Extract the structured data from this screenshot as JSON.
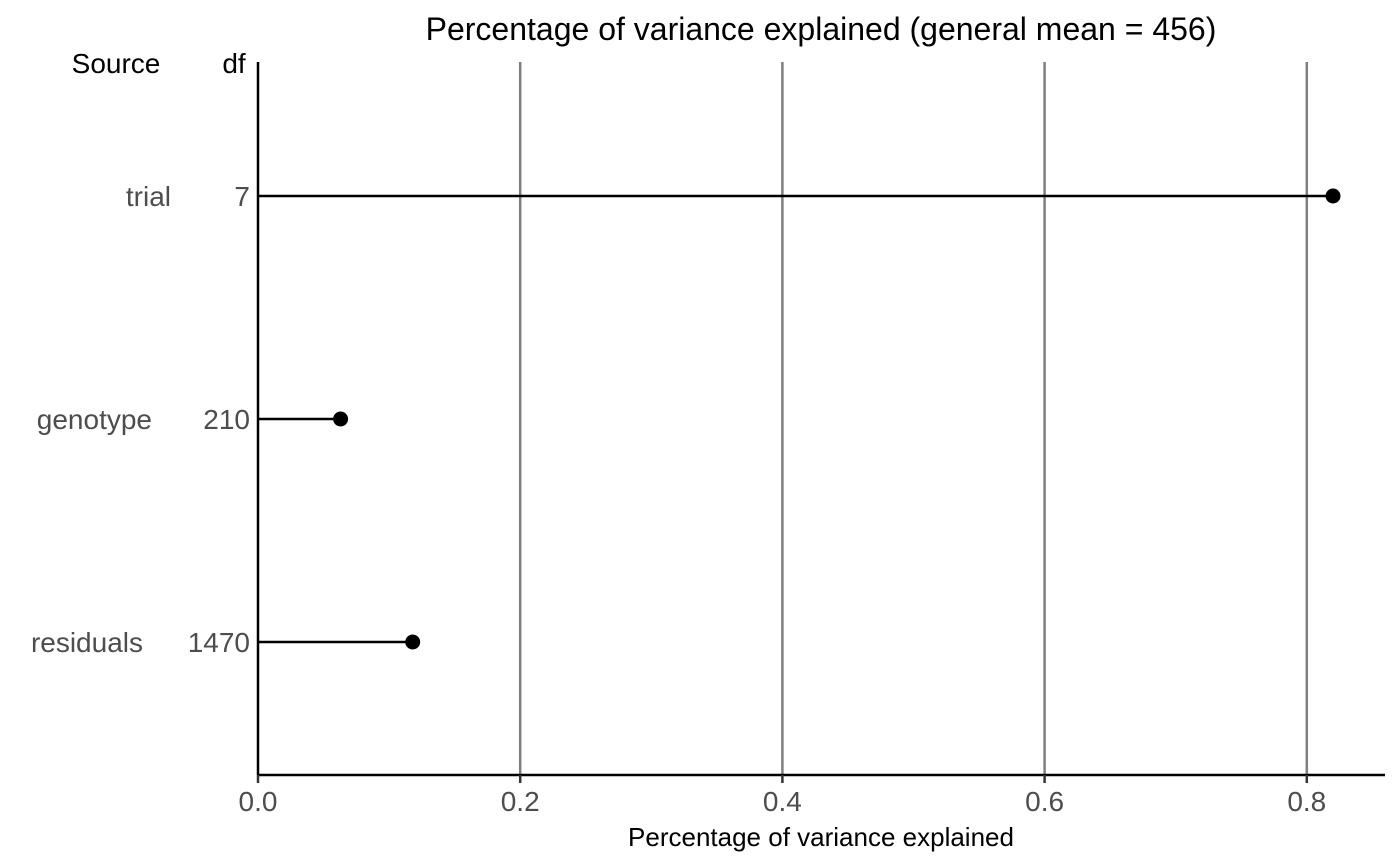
{
  "chart_data": {
    "type": "lollipop",
    "title": "Percentage of variance explained (general mean = 456)",
    "xlabel": "Percentage of variance explained",
    "xlim": [
      0,
      0.86
    ],
    "x_ticks": [
      0.0,
      0.2,
      0.4,
      0.6,
      0.8
    ],
    "x_tick_labels": [
      "0.0",
      "0.2",
      "0.4",
      "0.6",
      "0.8"
    ],
    "vertical_grid": true,
    "column_headers": {
      "source": "Source",
      "df": "df"
    },
    "categories": [
      {
        "source": "trial",
        "df": "7",
        "value": 0.82
      },
      {
        "source": "genotype",
        "df": "210",
        "value": 0.063
      },
      {
        "source": "residuals",
        "df": "1470",
        "value": 0.118
      }
    ],
    "colors": {
      "points": "#000000",
      "grid": "#808080",
      "text": "#4d4d4d"
    }
  }
}
